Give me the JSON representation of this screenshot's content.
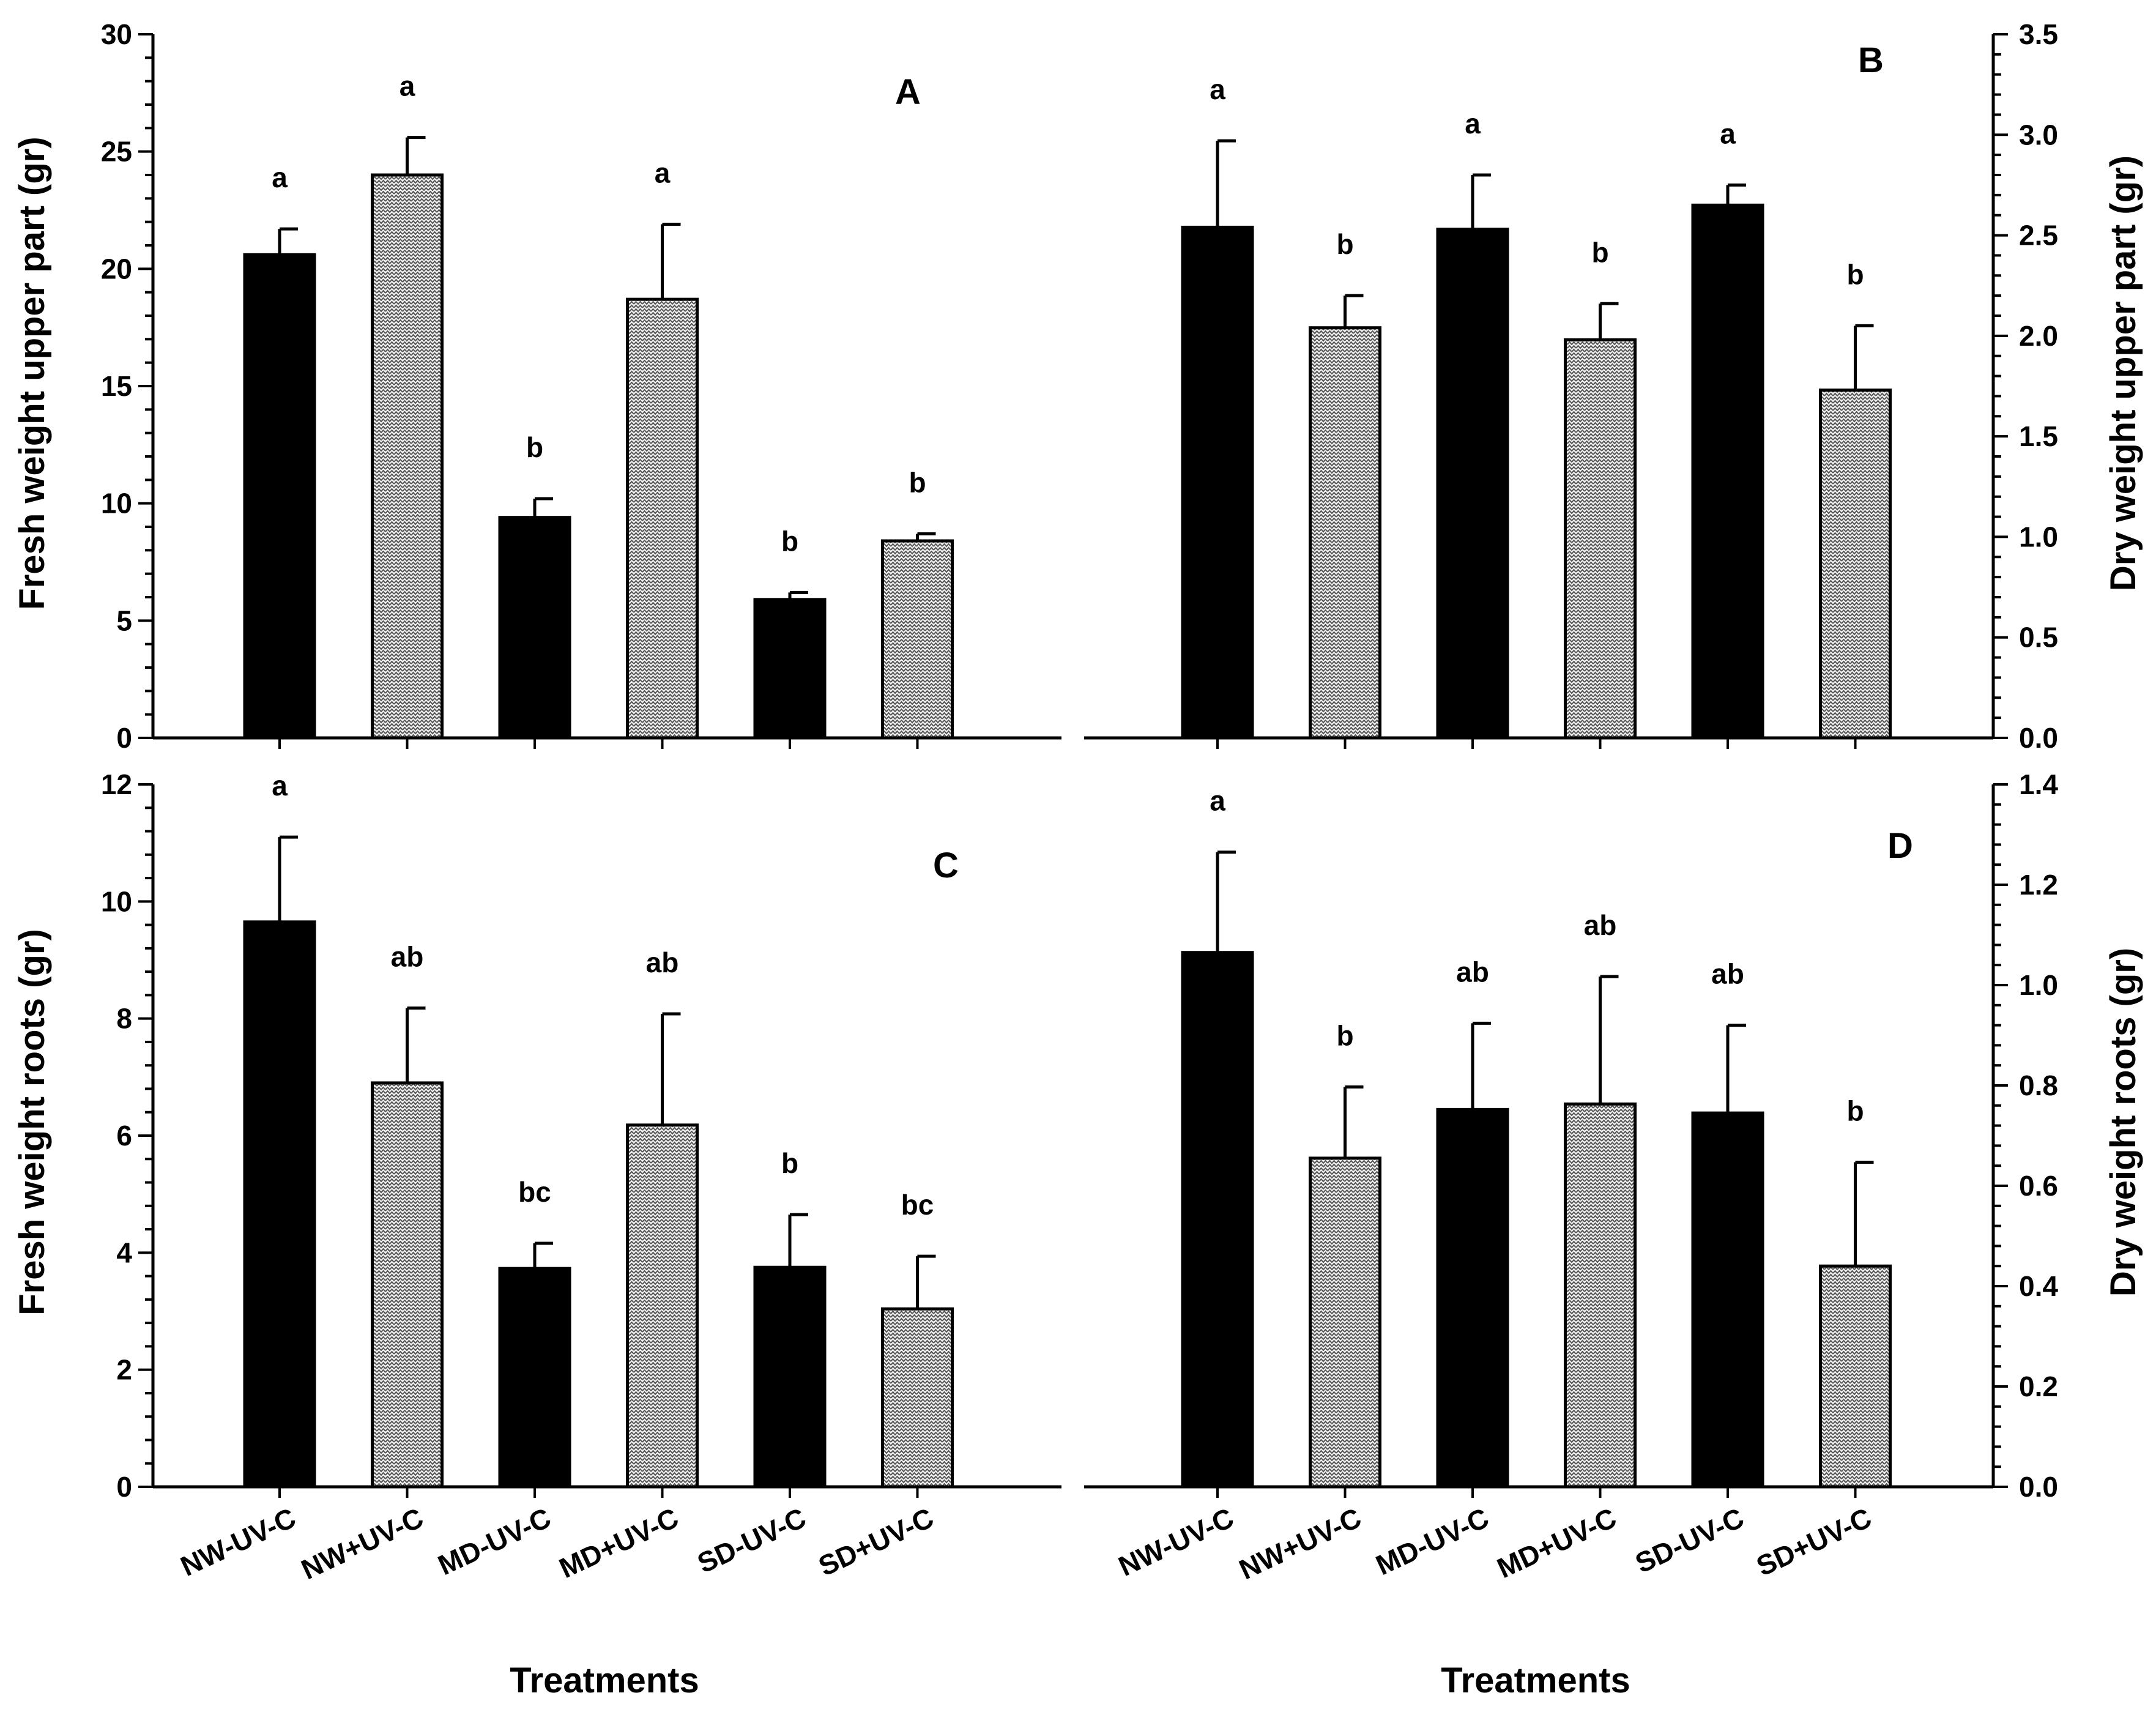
{
  "chart_data": [
    {
      "id": "A",
      "type": "bar",
      "panel_label": "A",
      "categories": [
        "NW-UV-C",
        "NW+UV-C",
        "MD-UV-C",
        "MD+UV-C",
        "SD-UV-C",
        "SD+UV-C"
      ],
      "values": [
        20.6,
        24.0,
        9.4,
        18.7,
        5.9,
        8.4
      ],
      "errors": [
        1.1,
        1.6,
        0.8,
        3.2,
        0.3,
        0.3
      ],
      "significance": [
        "a",
        "a",
        "b",
        "a",
        "b",
        "b"
      ],
      "ylabel": "Fresh weight upper part (gr)",
      "ylim": [
        0,
        30
      ],
      "yticks": [
        "0",
        "5",
        "10",
        "15",
        "20",
        "25",
        "30"
      ],
      "y_axis_side": "left"
    },
    {
      "id": "B",
      "type": "bar",
      "panel_label": "B",
      "categories": [
        "NW-UV-C",
        "NW+UV-C",
        "MD-UV-C",
        "MD+UV-C",
        "SD-UV-C",
        "SD+UV-C"
      ],
      "values": [
        2.54,
        2.04,
        2.53,
        1.98,
        2.65,
        1.73
      ],
      "errors": [
        0.43,
        0.16,
        0.27,
        0.18,
        0.1,
        0.32
      ],
      "significance": [
        "a",
        "b",
        "a",
        "b",
        "a",
        "b"
      ],
      "ylabel": "Dry weight upper part (gr)",
      "ylim": [
        0,
        3.5
      ],
      "yticks": [
        "0.0",
        "0.5",
        "1.0",
        "1.5",
        "2.0",
        "2.5",
        "3.0",
        "3.5"
      ],
      "y_axis_side": "right"
    },
    {
      "id": "C",
      "type": "bar",
      "panel_label": "C",
      "categories": [
        "NW-UV-C",
        "NW+UV-C",
        "MD-UV-C",
        "MD+UV-C",
        "SD-UV-C",
        "SD+UV-C"
      ],
      "values": [
        9.65,
        6.9,
        3.73,
        6.18,
        3.75,
        3.04
      ],
      "errors": [
        1.45,
        1.28,
        0.43,
        1.9,
        0.9,
        0.9
      ],
      "significance": [
        "a",
        "ab",
        "bc",
        "ab",
        "b",
        "bc"
      ],
      "ylabel": "Fresh weight roots (gr)",
      "xlabel": "Treatments",
      "ylim": [
        0,
        12
      ],
      "yticks": [
        "0",
        "2",
        "4",
        "6",
        "8",
        "10",
        "12"
      ],
      "y_axis_side": "left"
    },
    {
      "id": "D",
      "type": "bar",
      "panel_label": "D",
      "categories": [
        "NW-UV-C",
        "NW+UV-C",
        "MD-UV-C",
        "MD+UV-C",
        "SD-UV-C",
        "SD+UV-C"
      ],
      "values": [
        1.065,
        0.655,
        0.752,
        0.763,
        0.745,
        0.44
      ],
      "errors": [
        0.2,
        0.142,
        0.172,
        0.254,
        0.175,
        0.207
      ],
      "significance": [
        "a",
        "b",
        "ab",
        "ab",
        "ab",
        "b"
      ],
      "ylabel": "Dry weight roots (gr)",
      "xlabel": "Treatments",
      "ylim": [
        0,
        1.4
      ],
      "yticks": [
        "0.0",
        "0.2",
        "0.4",
        "0.6",
        "0.8",
        "1.0",
        "1.2",
        "1.4"
      ],
      "y_axis_side": "right"
    }
  ],
  "bar_colors": {
    "minus_uv": "#000000",
    "plus_uv": "#e6e6e6",
    "plus_uv_pattern": "#555555"
  }
}
